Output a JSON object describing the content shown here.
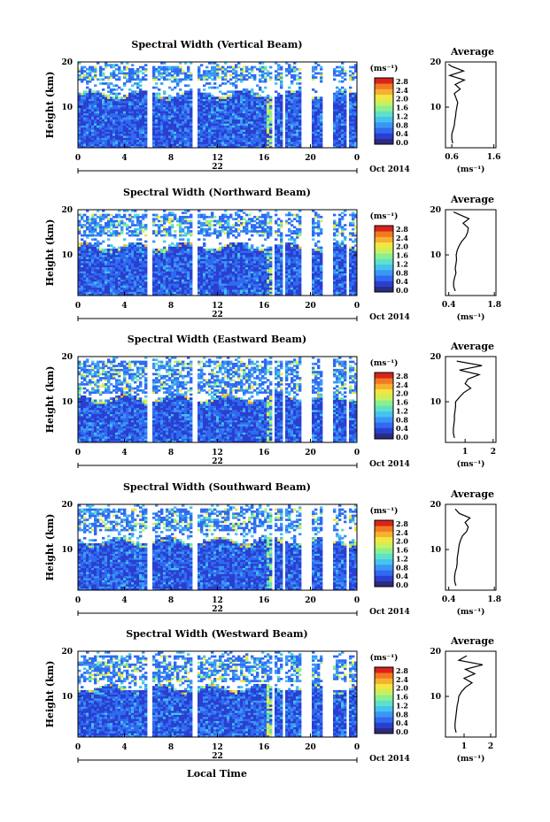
{
  "figure": {
    "x_label": "Local Time",
    "date_label": "Oct 2014",
    "colorbar_unit": "(ms⁻¹)",
    "avg_unit": "(ms⁻¹)",
    "avg_title": "Average",
    "y_label": "Height (km)",
    "colormap_colors": [
      "#2b2b80",
      "#2a3fd0",
      "#2f6af0",
      "#3c95f5",
      "#43c4ef",
      "#5fe0c8",
      "#8bef90",
      "#c9f060",
      "#f3e640",
      "#f8b030",
      "#f27a22",
      "#d8241a"
    ]
  },
  "chart_data": [
    {
      "type": "heatmap",
      "title": "Spectral Width (Vertical Beam)",
      "x_ticks": [
        "0",
        "4",
        "8",
        "12",
        "16",
        "20",
        "0"
      ],
      "day_label": "22",
      "y_ticks": [
        "20",
        "10"
      ],
      "colorbar_ticks": [
        "2.8",
        "2.4",
        "2.0",
        "1.6",
        "1.2",
        "0.8",
        "0.4",
        "0.0"
      ],
      "data_gaps_hours": [
        [
          6.0,
          6.3
        ],
        [
          9.9,
          10.3
        ],
        [
          16.6,
          16.9
        ],
        [
          17.6,
          17.9
        ],
        [
          19.1,
          20.2
        ],
        [
          21.1,
          21.9
        ],
        [
          23.0,
          23.4
        ]
      ],
      "cloud_top_km": 13,
      "upper_band_km": [
        16,
        19
      ],
      "average_profile": {
        "title": "Average",
        "x_ticks": [
          "0.6",
          "1.6"
        ],
        "xlim": [
          0.45,
          1.65
        ],
        "y_ticks": [
          "20",
          "10"
        ],
        "height_km": [
          2,
          3,
          4,
          5,
          6,
          7,
          8,
          9,
          10,
          11,
          12,
          13,
          14,
          15,
          16,
          17,
          18,
          19,
          19.5
        ],
        "width_ms": [
          0.62,
          0.6,
          0.6,
          0.63,
          0.66,
          0.67,
          0.69,
          0.7,
          0.72,
          0.74,
          0.7,
          0.66,
          0.8,
          0.68,
          0.9,
          0.55,
          0.88,
          0.6,
          0.52
        ]
      }
    },
    {
      "type": "heatmap",
      "title": "Spectral Width (Northward Beam)",
      "x_ticks": [
        "0",
        "4",
        "8",
        "12",
        "16",
        "20",
        "0"
      ],
      "day_label": "22",
      "y_ticks": [
        "20",
        "10"
      ],
      "colorbar_ticks": [
        "2.8",
        "2.4",
        "2.0",
        "1.6",
        "1.2",
        "0.8",
        "0.4",
        "0.0"
      ],
      "data_gaps_hours": [
        [
          6.0,
          6.3
        ],
        [
          9.9,
          10.3
        ],
        [
          16.6,
          16.9
        ],
        [
          17.6,
          17.9
        ],
        [
          19.1,
          20.2
        ],
        [
          21.1,
          21.9
        ],
        [
          23.0,
          23.4
        ]
      ],
      "cloud_top_km": 12,
      "upper_band_km": [
        14,
        19
      ],
      "average_profile": {
        "title": "Average",
        "x_ticks": [
          "0.4",
          "1.8"
        ],
        "xlim": [
          0.3,
          1.85
        ],
        "y_ticks": [
          "20",
          "10"
        ],
        "height_km": [
          2,
          3,
          4,
          5,
          6,
          7,
          8,
          9,
          10,
          11,
          12,
          13,
          14,
          15,
          16,
          17,
          18,
          19,
          19.5
        ],
        "width_ms": [
          0.6,
          0.55,
          0.55,
          0.58,
          0.62,
          0.6,
          0.62,
          0.64,
          0.63,
          0.66,
          0.72,
          0.8,
          0.92,
          0.98,
          1.0,
          0.84,
          1.02,
          0.7,
          0.55
        ]
      }
    },
    {
      "type": "heatmap",
      "title": "Spectral Width (Eastward Beam)",
      "x_ticks": [
        "0",
        "4",
        "8",
        "12",
        "16",
        "20",
        "0"
      ],
      "day_label": "22",
      "y_ticks": [
        "20",
        "10"
      ],
      "colorbar_ticks": [
        "2.8",
        "2.4",
        "2.0",
        "1.6",
        "1.2",
        "0.8",
        "0.4",
        "0.0"
      ],
      "data_gaps_hours": [
        [
          6.0,
          6.3
        ],
        [
          9.9,
          10.3
        ],
        [
          16.6,
          16.9
        ],
        [
          17.6,
          17.9
        ],
        [
          19.1,
          20.2
        ],
        [
          21.1,
          21.9
        ],
        [
          23.0,
          23.4
        ]
      ],
      "cloud_top_km": 11,
      "upper_band_km": [
        12,
        19
      ],
      "average_profile": {
        "title": "Average",
        "x_ticks": [
          "1",
          "2"
        ],
        "xlim": [
          0.3,
          2.1
        ],
        "y_ticks": [
          "20",
          "10"
        ],
        "height_km": [
          2,
          3,
          4,
          5,
          6,
          7,
          8,
          9,
          10,
          11,
          12,
          13,
          14,
          15,
          16,
          17,
          18,
          19
        ],
        "width_ms": [
          0.62,
          0.58,
          0.58,
          0.6,
          0.62,
          0.62,
          0.64,
          0.66,
          0.66,
          0.8,
          0.95,
          1.2,
          1.0,
          1.1,
          1.5,
          0.8,
          1.6,
          0.7
        ]
      }
    },
    {
      "type": "heatmap",
      "title": "Spectral Width (Southward Beam)",
      "x_ticks": [
        "0",
        "4",
        "8",
        "12",
        "16",
        "20",
        "0"
      ],
      "day_label": "22",
      "y_ticks": [
        "20",
        "10"
      ],
      "colorbar_ticks": [
        "2.8",
        "2.4",
        "2.0",
        "1.6",
        "1.2",
        "0.8",
        "0.4",
        "0.0"
      ],
      "data_gaps_hours": [
        [
          6.0,
          6.3
        ],
        [
          9.9,
          10.3
        ],
        [
          16.6,
          16.9
        ],
        [
          17.6,
          17.9
        ],
        [
          19.1,
          20.2
        ],
        [
          21.1,
          21.9
        ],
        [
          23.0,
          23.4
        ]
      ],
      "cloud_top_km": 12,
      "upper_band_km": [
        14,
        19
      ],
      "average_profile": {
        "title": "Average",
        "x_ticks": [
          "0.4",
          "1.8"
        ],
        "xlim": [
          0.3,
          1.85
        ],
        "y_ticks": [
          "20",
          "10"
        ],
        "height_km": [
          2,
          3,
          4,
          5,
          6,
          7,
          8,
          9,
          10,
          11,
          12,
          13,
          14,
          15,
          16,
          17,
          18,
          19
        ],
        "width_ms": [
          0.62,
          0.58,
          0.58,
          0.6,
          0.64,
          0.66,
          0.66,
          0.68,
          0.7,
          0.72,
          0.76,
          0.82,
          0.95,
          1.0,
          0.9,
          1.05,
          0.72,
          0.6
        ]
      }
    },
    {
      "type": "heatmap",
      "title": "Spectral Width (Westward Beam)",
      "x_ticks": [
        "0",
        "4",
        "8",
        "12",
        "16",
        "20",
        "0"
      ],
      "day_label": "22",
      "y_ticks": [
        "20",
        "10"
      ],
      "colorbar_ticks": [
        "2.8",
        "2.4",
        "2.0",
        "1.6",
        "1.2",
        "0.8",
        "0.4",
        "0.0"
      ],
      "data_gaps_hours": [
        [
          6.0,
          6.3
        ],
        [
          9.9,
          10.3
        ],
        [
          16.6,
          16.9
        ],
        [
          17.6,
          17.9
        ],
        [
          19.1,
          20.2
        ],
        [
          21.1,
          21.9
        ],
        [
          23.0,
          23.4
        ]
      ],
      "cloud_top_km": 12,
      "upper_band_km": [
        13,
        19
      ],
      "average_profile": {
        "title": "Average",
        "x_ticks": [
          "1",
          "2"
        ],
        "xlim": [
          0.3,
          2.2
        ],
        "y_ticks": [
          "20",
          "10"
        ],
        "height_km": [
          2,
          3,
          4,
          5,
          6,
          7,
          8,
          9,
          10,
          11,
          12,
          13,
          14,
          15,
          16,
          17,
          18,
          19
        ],
        "width_ms": [
          0.7,
          0.66,
          0.66,
          0.68,
          0.7,
          0.72,
          0.74,
          0.78,
          0.8,
          0.9,
          1.05,
          1.3,
          1.0,
          1.4,
          1.05,
          1.7,
          0.8,
          1.1
        ]
      }
    }
  ]
}
